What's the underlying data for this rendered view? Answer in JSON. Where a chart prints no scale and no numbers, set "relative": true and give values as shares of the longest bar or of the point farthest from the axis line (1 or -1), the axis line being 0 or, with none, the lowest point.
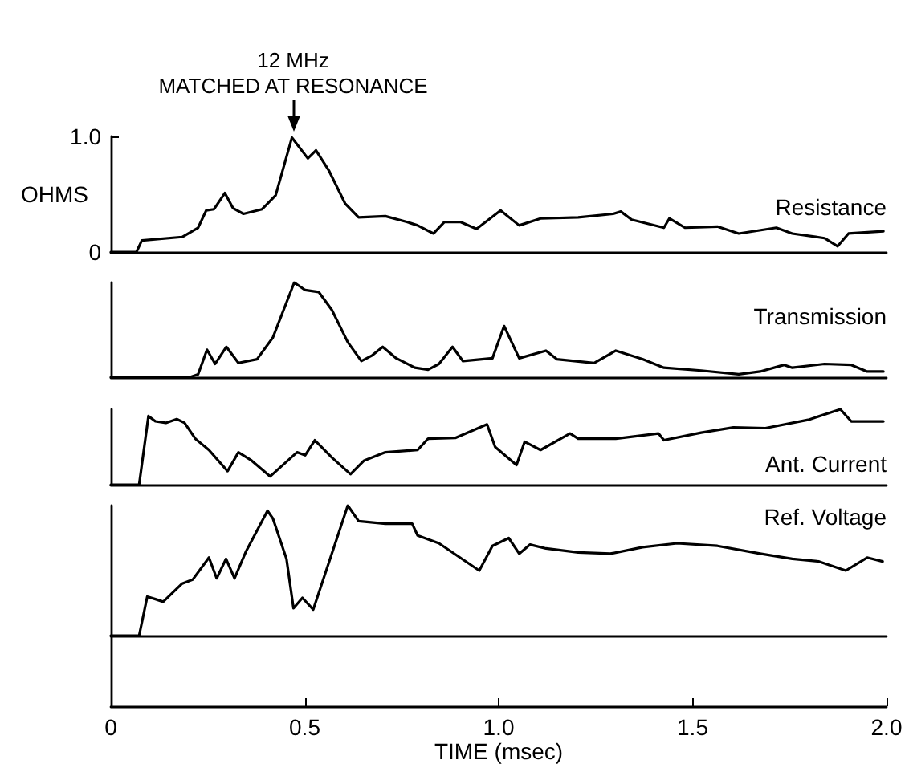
{
  "chart_data": [
    {
      "type": "line",
      "ylabel": "OHMS",
      "xlim": [
        0,
        2.0
      ],
      "ylim": [
        0,
        1.0
      ],
      "yticks": [
        0,
        {
          "value": 1,
          "label": "1.0"
        }
      ],
      "tick_labels": "y",
      "marker": "none",
      "annotations": [
        {
          "text": "12 MHz\nMATCHED AT RESONANCE",
          "x": 0.47,
          "y": 0.99
        }
      ],
      "series": [
        {
          "name": "Resistance",
          "color": "#000000",
          "x": [
            0,
            0.066,
            0.08,
            0.184,
            0.225,
            0.246,
            0.266,
            0.294,
            0.315,
            0.342,
            0.39,
            0.425,
            0.467,
            0.508,
            0.529,
            0.563,
            0.604,
            0.639,
            0.708,
            0.763,
            0.791,
            0.832,
            0.86,
            0.901,
            0.943,
            1.005,
            1.053,
            1.108,
            1.205,
            1.295,
            1.315,
            1.343,
            1.426,
            1.44,
            1.481,
            1.564,
            1.619,
            1.716,
            1.757,
            1.84,
            1.874,
            1.902,
            1.992
          ],
          "values": [
            0,
            0,
            0.1,
            0.13,
            0.21,
            0.36,
            0.37,
            0.51,
            0.38,
            0.33,
            0.37,
            0.49,
            0.99,
            0.81,
            0.88,
            0.7,
            0.42,
            0.3,
            0.31,
            0.26,
            0.23,
            0.16,
            0.26,
            0.26,
            0.2,
            0.36,
            0.23,
            0.29,
            0.3,
            0.33,
            0.35,
            0.28,
            0.21,
            0.29,
            0.21,
            0.22,
            0.16,
            0.21,
            0.16,
            0.12,
            0.05,
            0.16,
            0.18
          ]
        }
      ]
    },
    {
      "type": "line",
      "relative": true,
      "xlim": [
        0,
        2.0
      ],
      "tick_labels": false,
      "marker": "none",
      "series": [
        {
          "name": "Transmission",
          "color": "#000000",
          "x": [
            0,
            0.204,
            0.225,
            0.248,
            0.269,
            0.298,
            0.329,
            0.377,
            0.418,
            0.473,
            0.501,
            0.536,
            0.57,
            0.611,
            0.646,
            0.674,
            0.701,
            0.736,
            0.784,
            0.818,
            0.846,
            0.881,
            0.908,
            0.984,
            1.014,
            1.053,
            1.122,
            1.15,
            1.246,
            1.302,
            1.371,
            1.426,
            1.522,
            1.619,
            1.674,
            1.736,
            1.757,
            1.84,
            1.909,
            1.95,
            1.992
          ],
          "values": [
            0,
            0,
            0.03,
            0.29,
            0.14,
            0.32,
            0.15,
            0.19,
            0.42,
            1.0,
            0.92,
            0.9,
            0.71,
            0.37,
            0.17,
            0.23,
            0.32,
            0.2,
            0.1,
            0.08,
            0.14,
            0.32,
            0.17,
            0.2,
            0.54,
            0.2,
            0.28,
            0.19,
            0.15,
            0.28,
            0.19,
            0.1,
            0.07,
            0.03,
            0.06,
            0.13,
            0.1,
            0.14,
            0.13,
            0.06,
            0.06
          ]
        }
      ]
    },
    {
      "type": "line",
      "relative": true,
      "xlim": [
        0,
        2.0
      ],
      "tick_labels": false,
      "marker": "none",
      "series": [
        {
          "name": "Ant. Current",
          "color": "#000000",
          "x": [
            0,
            0.073,
            0.097,
            0.115,
            0.142,
            0.17,
            0.19,
            0.218,
            0.253,
            0.301,
            0.329,
            0.363,
            0.411,
            0.48,
            0.501,
            0.526,
            0.57,
            0.618,
            0.653,
            0.708,
            0.791,
            0.818,
            0.888,
            0.97,
            0.991,
            1.046,
            1.067,
            1.108,
            1.184,
            1.205,
            1.302,
            1.412,
            1.426,
            1.522,
            1.605,
            1.688,
            1.798,
            1.881,
            1.909,
            1.992
          ],
          "values": [
            0,
            0,
            0.91,
            0.84,
            0.82,
            0.87,
            0.82,
            0.61,
            0.46,
            0.18,
            0.43,
            0.32,
            0.11,
            0.43,
            0.39,
            0.59,
            0.36,
            0.14,
            0.32,
            0.43,
            0.46,
            0.61,
            0.62,
            0.8,
            0.5,
            0.26,
            0.57,
            0.46,
            0.68,
            0.61,
            0.61,
            0.68,
            0.59,
            0.69,
            0.76,
            0.75,
            0.86,
            1.0,
            0.84,
            0.84
          ]
        }
      ]
    },
    {
      "type": "line",
      "relative": true,
      "xlim": [
        0,
        2.0
      ],
      "xticks": [
        0,
        0.5,
        {
          "value": 1,
          "label": "1.0"
        },
        1.5,
        {
          "value": 2,
          "label": "2.0"
        }
      ],
      "xlabel": "TIME (msec)",
      "tick_labels": "x",
      "marker": "none",
      "series": [
        {
          "name": "Ref. Voltage",
          "color": "#000000",
          "x": [
            0,
            0.073,
            0.094,
            0.115,
            0.135,
            0.184,
            0.211,
            0.253,
            0.273,
            0.297,
            0.319,
            0.349,
            0.404,
            0.418,
            0.453,
            0.471,
            0.494,
            0.522,
            0.611,
            0.639,
            0.708,
            0.777,
            0.791,
            0.846,
            0.95,
            0.984,
            1.026,
            1.053,
            1.081,
            1.122,
            1.205,
            1.288,
            1.371,
            1.46,
            1.564,
            1.674,
            1.757,
            1.826,
            1.895,
            1.95,
            1.99
          ],
          "values": [
            0,
            0,
            0.3,
            0.28,
            0.26,
            0.4,
            0.43,
            0.6,
            0.44,
            0.59,
            0.44,
            0.65,
            0.96,
            0.9,
            0.59,
            0.21,
            0.29,
            0.2,
            1.0,
            0.88,
            0.86,
            0.86,
            0.77,
            0.71,
            0.5,
            0.69,
            0.75,
            0.63,
            0.7,
            0.67,
            0.64,
            0.63,
            0.68,
            0.71,
            0.69,
            0.63,
            0.59,
            0.57,
            0.5,
            0.6,
            0.57
          ]
        }
      ]
    }
  ]
}
